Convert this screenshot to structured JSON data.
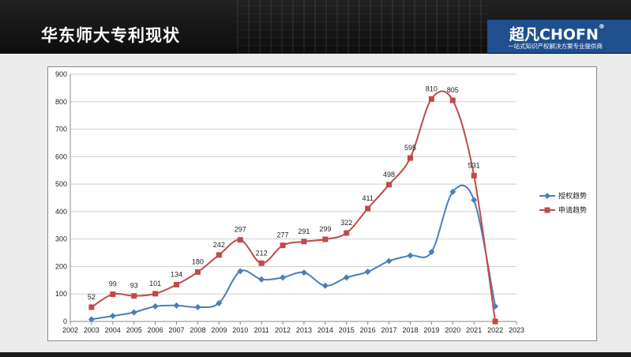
{
  "header": {
    "title": "华东师大专利现状",
    "logo_main": "超凡CHOFN",
    "logo_reg": "®",
    "logo_sub": "一站式知识产权解决方案专业提供商"
  },
  "colors": {
    "grant": "#4a7ebb",
    "apply": "#be4b48"
  },
  "chart_data": {
    "type": "line",
    "title": "",
    "xlabel": "",
    "ylabel": "",
    "xlim": [
      2002,
      2023
    ],
    "ylim": [
      0,
      900
    ],
    "x_ticks": [
      2002,
      2003,
      2004,
      2005,
      2006,
      2007,
      2008,
      2009,
      2010,
      2011,
      2012,
      2013,
      2014,
      2015,
      2016,
      2017,
      2018,
      2019,
      2020,
      2021,
      2022,
      2023
    ],
    "y_ticks": [
      0,
      100,
      200,
      300,
      400,
      500,
      600,
      700,
      800,
      900
    ],
    "grid": "horizontal",
    "legend_position": "right",
    "series": [
      {
        "name": "授权趋势",
        "color": "#4a7ebb",
        "marker": "diamond",
        "x": [
          2003,
          2004,
          2005,
          2006,
          2007,
          2008,
          2009,
          2010,
          2011,
          2012,
          2013,
          2014,
          2015,
          2016,
          2017,
          2018,
          2019,
          2020,
          2021,
          2022
        ],
        "values": [
          8,
          20,
          33,
          55,
          58,
          52,
          67,
          183,
          153,
          160,
          178,
          130,
          160,
          181,
          220,
          240,
          253,
          472,
          442,
          55
        ],
        "show_labels": false
      },
      {
        "name": "申请趋势",
        "color": "#be4b48",
        "marker": "square",
        "x": [
          2003,
          2004,
          2005,
          2006,
          2007,
          2008,
          2009,
          2010,
          2011,
          2012,
          2013,
          2014,
          2015,
          2016,
          2017,
          2018,
          2019,
          2020,
          2021,
          2022
        ],
        "values": [
          52,
          99,
          93,
          101,
          134,
          180,
          242,
          297,
          212,
          277,
          291,
          299,
          322,
          411,
          498,
          595,
          810,
          805,
          531,
          0
        ],
        "labels": [
          "52",
          "99",
          "93",
          "101",
          "134",
          "180",
          "242",
          "297",
          "212",
          "277",
          "291",
          "299",
          "322",
          "411",
          "498",
          "595",
          "810",
          "805",
          "531",
          ""
        ],
        "show_labels": true
      }
    ]
  }
}
